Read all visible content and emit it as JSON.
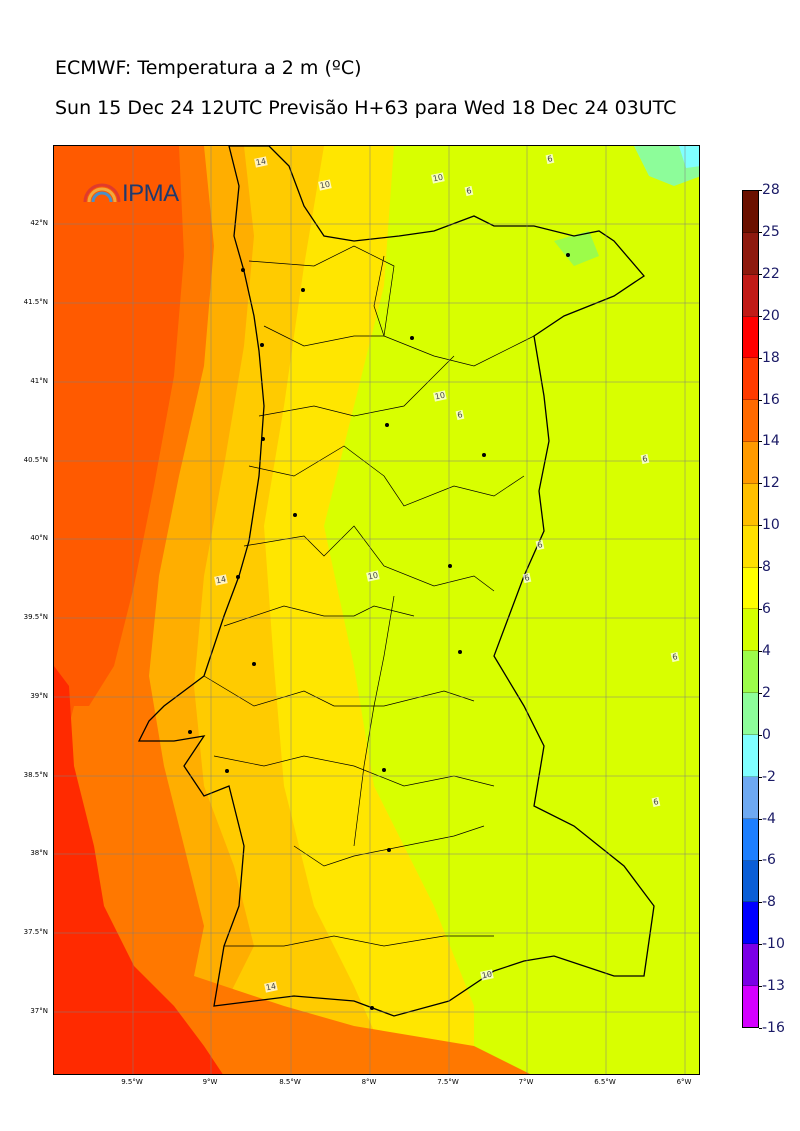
{
  "header": {
    "title": "ECMWF: Temperatura a 2 m (ºC)",
    "subtitle": "Sun 15 Dec 24 12UTC Previsão H+63 para Wed 18 Dec 24 03UTC"
  },
  "logo": {
    "text": "IPMA",
    "icon": "rainbow-arc-icon"
  },
  "map": {
    "lat_labels": [
      "42°N",
      "41.5°N",
      "41°N",
      "40.5°N",
      "40°N",
      "39.5°N",
      "39°N",
      "38.5°N",
      "38°N",
      "37.5°N",
      "37°N"
    ],
    "lon_labels": [
      "9.5°W",
      "9°W",
      "8.5°W",
      "8°W",
      "7.5°W",
      "7°W",
      "6.5°W",
      "6°W"
    ],
    "contour_labels": [
      "14",
      "10",
      "10",
      "6",
      "6",
      "10",
      "6",
      "6",
      "14",
      "10",
      "6",
      "6",
      "6",
      "10",
      "14",
      "6"
    ]
  },
  "colorbar": {
    "levels": [
      "28",
      "25",
      "22",
      "20",
      "18",
      "16",
      "14",
      "12",
      "10",
      "8",
      "6",
      "4",
      "2",
      "0",
      "-2",
      "-4",
      "-6",
      "-8",
      "-10",
      "-13",
      "-16"
    ],
    "colors": [
      "#6b1100",
      "#8e1a0e",
      "#c11b17",
      "#ff0000",
      "#ff3b00",
      "#ff6a00",
      "#ff9a00",
      "#ffbf00",
      "#ffe000",
      "#ffff00",
      "#d4ff00",
      "#9cfc4a",
      "#8dfd9a",
      "#80ffff",
      "#6ea9f2",
      "#1d7ffe",
      "#0a5ed6",
      "#0000ff",
      "#7b00e6",
      "#d400ff"
    ]
  }
}
